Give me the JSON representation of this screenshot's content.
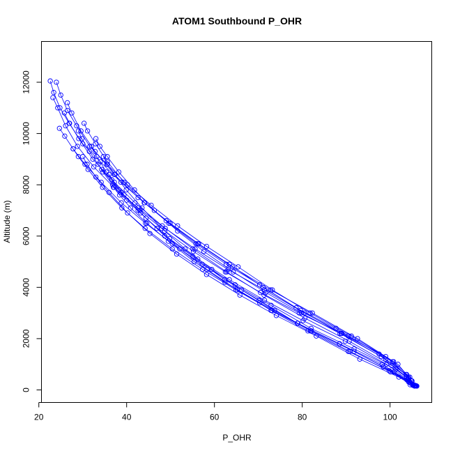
{
  "chart_data": {
    "type": "line",
    "title": "ATOM1 Southbound P_OHR",
    "xlabel": "P_OHR",
    "ylabel": "Altitude (m)",
    "xlim": [
      20.6,
      109.5
    ],
    "ylim": [
      -490,
      13590
    ],
    "xticks": [
      20,
      40,
      60,
      80,
      100
    ],
    "yticks": [
      0,
      2000,
      4000,
      6000,
      8000,
      10000,
      12000
    ],
    "color": "#0000ff",
    "marker": "open-circle",
    "series": [
      {
        "x": [
          22.6,
          23.4,
          24.8,
          26.9,
          30.0,
          34.0,
          38.7,
          44.0,
          49.9,
          56.4,
          63.4,
          71.1,
          79.6,
          88.9,
          99.0,
          103.8,
          104.6
        ],
        "y": [
          12050,
          11600,
          11000,
          10400,
          9600,
          8900,
          8100,
          7300,
          6500,
          5700,
          4900,
          4000,
          3100,
          2200,
          1200,
          600,
          200
        ]
      },
      {
        "x": [
          24.0,
          25.0,
          26.5,
          28.6,
          31.6,
          35.5,
          40.2,
          45.6,
          51.6,
          58.2,
          65.4,
          73.2,
          81.8,
          91.2,
          100.8,
          104.5,
          105.3
        ],
        "y": [
          12000,
          11500,
          10900,
          10300,
          9500,
          8800,
          8000,
          7200,
          6400,
          5600,
          4800,
          3900,
          3000,
          2100,
          1100,
          500,
          180
        ]
      },
      {
        "x": [
          23.2,
          24.3,
          26.1,
          28.8,
          32.5,
          37.1,
          42.6,
          48.8,
          55.6,
          63.1,
          71.4,
          80.5,
          90.5,
          100.6,
          104.3,
          105.8
        ],
        "y": [
          11400,
          11000,
          10300,
          9500,
          8700,
          7900,
          7100,
          6300,
          5500,
          4700,
          3900,
          3000,
          2100,
          1100,
          450,
          170
        ]
      },
      {
        "x": [
          24.7,
          25.9,
          27.8,
          30.5,
          34.2,
          38.8,
          44.3,
          50.4,
          57.2,
          64.7,
          72.9,
          82.0,
          91.8,
          101.3,
          104.9,
          105.9
        ],
        "y": [
          10200,
          9900,
          9400,
          8800,
          8100,
          7300,
          6500,
          5700,
          4900,
          4100,
          3300,
          2400,
          1600,
          800,
          350,
          160
        ]
      },
      {
        "x": [
          27.8,
          29.0,
          31.2,
          34.5,
          38.9,
          44.2,
          50.4,
          57.3,
          64.9,
          73.1,
          82.1,
          91.8,
          100.9,
          104.5,
          105.6
        ],
        "y": [
          9400,
          9100,
          8600,
          7900,
          7100,
          6300,
          5500,
          4700,
          3900,
          3100,
          2300,
          1500,
          700,
          300,
          150
        ]
      },
      {
        "x": [
          30.3,
          31.1,
          32.9,
          35.6,
          39.4,
          44.1,
          49.6,
          55.8,
          62.7,
          70.3,
          78.6,
          87.7,
          97.5,
          103.6,
          105.4
        ],
        "y": [
          10400,
          10100,
          9600,
          8900,
          8100,
          7300,
          6500,
          5700,
          4900,
          4100,
          3200,
          2400,
          1400,
          600,
          200
        ]
      },
      {
        "x": [
          33.0,
          33.9,
          35.6,
          38.2,
          41.8,
          46.3,
          51.6,
          57.6,
          64.3,
          71.7,
          79.8,
          88.6,
          98.0,
          103.8,
          105.7
        ],
        "y": [
          9800,
          9500,
          9100,
          8500,
          7800,
          7000,
          6200,
          5400,
          4600,
          3800,
          3000,
          2200,
          1300,
          500,
          170
        ]
      },
      {
        "x": [
          30.0,
          31.0,
          33.0,
          36.0,
          40.2,
          45.3,
          51.4,
          58.2,
          65.8,
          74.1,
          83.2,
          93.1,
          102.0,
          105.2
        ],
        "y": [
          9100,
          8800,
          8300,
          7700,
          6900,
          6100,
          5300,
          4500,
          3700,
          2900,
          2100,
          1200,
          500,
          180
        ]
      },
      {
        "x": [
          32.0,
          33.2,
          35.4,
          38.7,
          43.2,
          48.7,
          55.1,
          62.3,
          70.2,
          78.9,
          88.5,
          98.5,
          104.1,
          106.0
        ],
        "y": [
          9500,
          9100,
          8500,
          7700,
          6900,
          6000,
          5200,
          4300,
          3500,
          2600,
          1800,
          900,
          350,
          160
        ]
      },
      {
        "x": [
          34.7,
          35.6,
          37.3,
          39.9,
          43.5,
          48.0,
          53.3,
          59.4,
          66.2,
          73.7,
          81.9,
          90.9,
          100.1,
          104.8
        ],
        "y": [
          9100,
          8800,
          8400,
          7800,
          7100,
          6300,
          5500,
          4700,
          3900,
          3100,
          2300,
          1500,
          700,
          250
        ]
      },
      {
        "x": [
          25.8,
          27.0,
          29.1,
          32.3,
          36.6,
          41.9,
          48.1,
          55.1,
          62.8,
          71.3,
          80.6,
          90.7,
          100.4,
          104.7,
          106.1
        ],
        "y": [
          10800,
          10400,
          9800,
          9000,
          8200,
          7300,
          6400,
          5500,
          4600,
          3700,
          2800,
          1900,
          950,
          380,
          150
        ]
      },
      {
        "x": [
          29.0,
          29.8,
          31.5,
          34.3,
          38.2,
          43.0,
          48.7,
          55.2,
          62.5,
          70.5,
          79.3,
          89.0,
          99.0,
          104.2,
          105.8
        ],
        "y": [
          10100,
          9800,
          9300,
          8600,
          7800,
          7000,
          6200,
          5400,
          4600,
          3800,
          3000,
          2200,
          1300,
          500,
          160
        ]
      },
      {
        "x": [
          36.0,
          37.2,
          39.4,
          42.6,
          46.9,
          52.1,
          58.3,
          65.2,
          72.9,
          81.3,
          90.5,
          99.8,
          104.3,
          105.5
        ],
        "y": [
          8400,
          8100,
          7600,
          7000,
          6300,
          5500,
          4700,
          3900,
          3100,
          2300,
          1500,
          750,
          300,
          170
        ]
      },
      {
        "x": [
          26.5,
          27.5,
          29.6,
          32.8,
          37.2,
          42.6,
          49.0,
          56.2,
          64.1,
          72.8,
          82.3,
          92.6,
          101.8,
          105.0
        ],
        "y": [
          11200,
          10800,
          10100,
          9300,
          8400,
          7500,
          6600,
          5700,
          4800,
          3900,
          3000,
          2000,
          1000,
          350
        ]
      },
      {
        "x": [
          37.0,
          38.4,
          40.9,
          44.6,
          49.5,
          55.4,
          62.4,
          70.3,
          79.0,
          88.5,
          98.2,
          103.8,
          105.9
        ],
        "y": [
          7900,
          7600,
          7100,
          6500,
          5800,
          5000,
          4200,
          3400,
          2600,
          1800,
          1000,
          400,
          160
        ]
      },
      {
        "x": [
          33.5,
          34.6,
          36.8,
          40.0,
          44.4,
          49.8,
          56.2,
          63.4,
          71.4,
          80.2,
          89.8,
          99.2,
          104.0,
          105.6
        ],
        "y": [
          8800,
          8500,
          8000,
          7400,
          6700,
          5900,
          5100,
          4300,
          3500,
          2700,
          1900,
          1000,
          400,
          170
        ]
      }
    ]
  }
}
